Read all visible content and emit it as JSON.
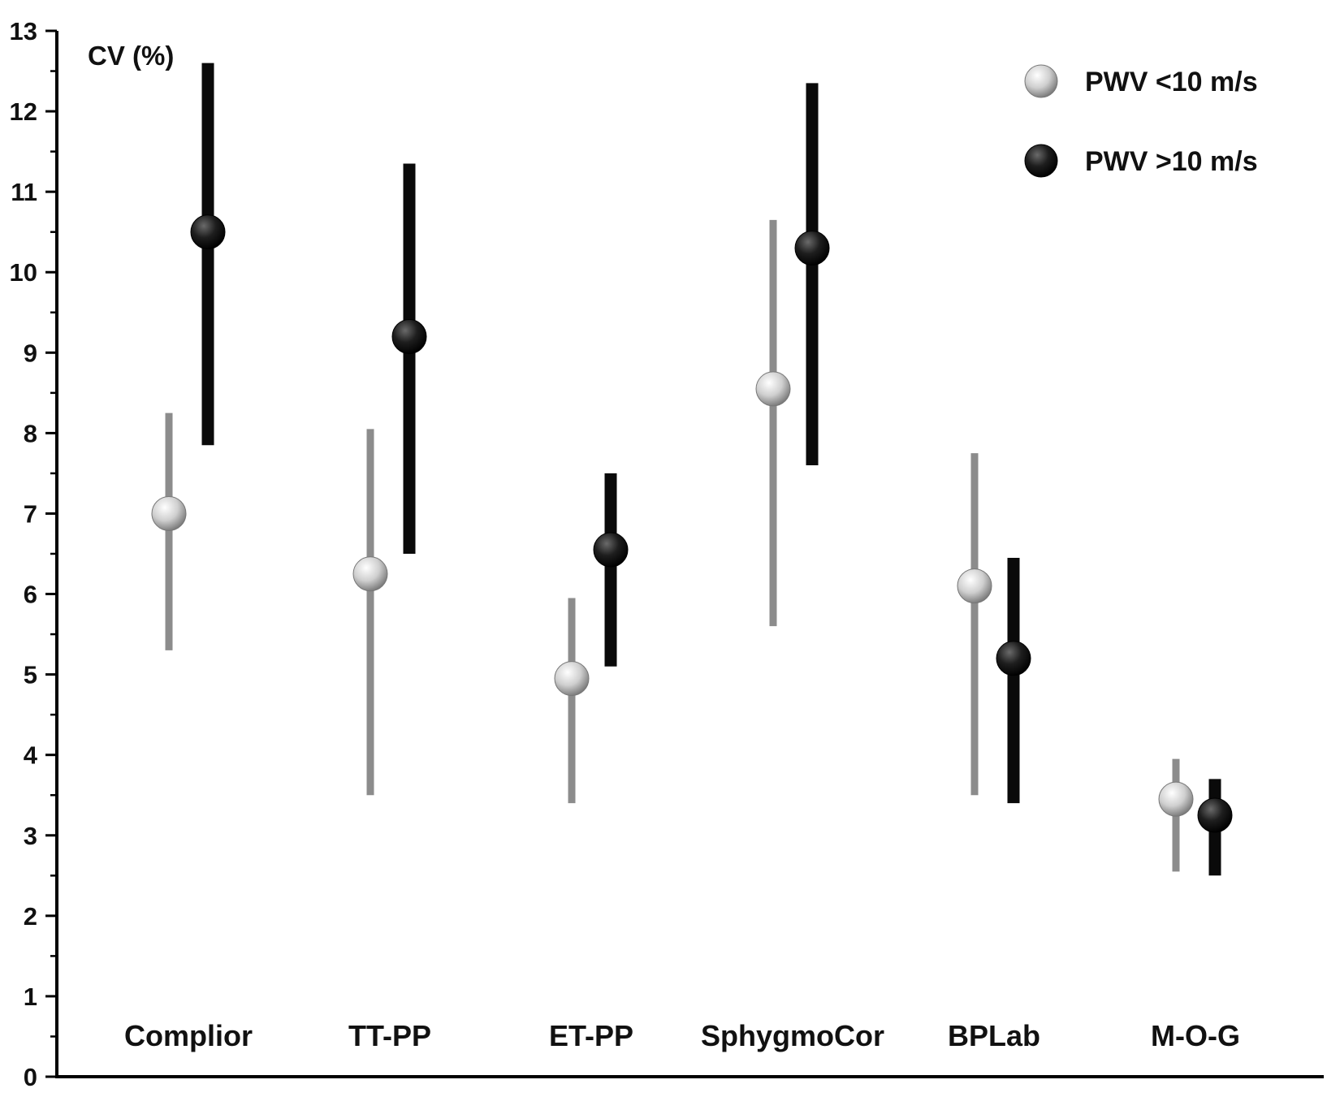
{
  "chart_data": {
    "type": "scatter",
    "subtype": "point-range",
    "title": "",
    "xlabel": "",
    "ylabel": "CV (%)",
    "ylim": [
      0,
      13
    ],
    "yticks": [
      0,
      1,
      2,
      3,
      4,
      5,
      6,
      7,
      8,
      9,
      10,
      11,
      12,
      13
    ],
    "grid": false,
    "legend_position": "top-right",
    "categories": [
      "Complior",
      "TT-PP",
      "ET-PP",
      "SphygmoCor",
      "BPLab",
      "M-O-G"
    ],
    "series": [
      {
        "name": "PWV <10 m/s",
        "color": "#c8c8c8",
        "values": [
          7.0,
          6.25,
          4.95,
          8.55,
          6.1,
          3.45
        ],
        "lower": [
          5.3,
          3.5,
          3.4,
          5.6,
          3.5,
          2.55
        ],
        "upper": [
          8.25,
          8.05,
          5.95,
          10.65,
          7.75,
          3.95
        ]
      },
      {
        "name": "PWV >10 m/s",
        "color": "#111111",
        "values": [
          10.5,
          9.2,
          6.55,
          10.3,
          5.2,
          3.25
        ],
        "lower": [
          7.85,
          6.5,
          5.1,
          7.6,
          3.4,
          2.5
        ],
        "upper": [
          12.6,
          11.35,
          7.5,
          12.35,
          6.45,
          3.7
        ]
      }
    ]
  }
}
